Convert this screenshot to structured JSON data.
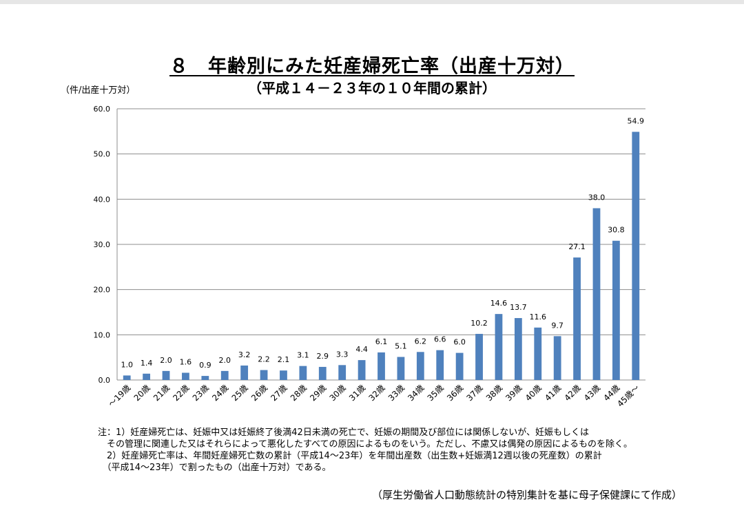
{
  "title": "８　年齢別にみた妊産婦死亡率（出産十万対）",
  "subtitle": "（平成１４－２３年の１０年間の累計）",
  "unit_label": "（件/出産十万対）",
  "chart_data": {
    "type": "bar",
    "title": "８　年齢別にみた妊産婦死亡率（出産十万対）",
    "subtitle": "（平成１４－２３年の１０年間の累計）",
    "ylabel": "（件/出産十万対）",
    "xlabel": "",
    "ylim": [
      0,
      60
    ],
    "y_ticks": [
      "0.0",
      "10.0",
      "20.0",
      "30.0",
      "40.0",
      "50.0",
      "60.0"
    ],
    "grid": true,
    "bar_color": "#4f81bd",
    "categories": [
      "～19歳",
      "20歳",
      "21歳",
      "22歳",
      "23歳",
      "24歳",
      "25歳",
      "26歳",
      "27歳",
      "28歳",
      "29歳",
      "30歳",
      "31歳",
      "32歳",
      "33歳",
      "34歳",
      "35歳",
      "36歳",
      "37歳",
      "38歳",
      "39歳",
      "40歳",
      "41歳",
      "42歳",
      "43歳",
      "44歳",
      "45歳～"
    ],
    "values": [
      1.0,
      1.4,
      2.0,
      1.6,
      0.9,
      2.0,
      3.2,
      2.2,
      2.1,
      3.1,
      2.9,
      3.3,
      4.4,
      6.1,
      5.1,
      6.2,
      6.6,
      6.0,
      10.2,
      14.6,
      13.7,
      11.6,
      9.7,
      27.1,
      38.0,
      30.8,
      54.9
    ],
    "value_labels": [
      "1.0",
      "1.4",
      "2.0",
      "1.6",
      "0.9",
      "2.0",
      "3.2",
      "2.2",
      "2.1",
      "3.1",
      "2.9",
      "3.3",
      "4.4",
      "6.1",
      "5.1",
      "6.2",
      "6.6",
      "6.0",
      "10.2",
      "14.6",
      "13.7",
      "11.6",
      "9.7",
      "27.1",
      "38.0",
      "30.8",
      "54.9"
    ]
  },
  "notes": [
    "注：1）妊産婦死亡は、妊娠中又は妊娠終了後満42日未満の死亡で、妊娠の期間及び部位には関係しないが、妊娠もしくは",
    "　その管理に関連した又はそれらによって悪化したすべての原因によるものをいう。ただし、不慮又は偶発の原因によるものを除く。",
    "　2）妊産婦死亡率は、年間妊産婦死亡数の累計（平成14～23年）を年間出産数（出生数+妊娠満12週以後の死産数）の累計",
    "　（平成14～23年）で割ったもの（出産十万対）である。"
  ],
  "source": "（厚生労働省人口動態統計の特別集計を基に母子保健課にて作成）"
}
